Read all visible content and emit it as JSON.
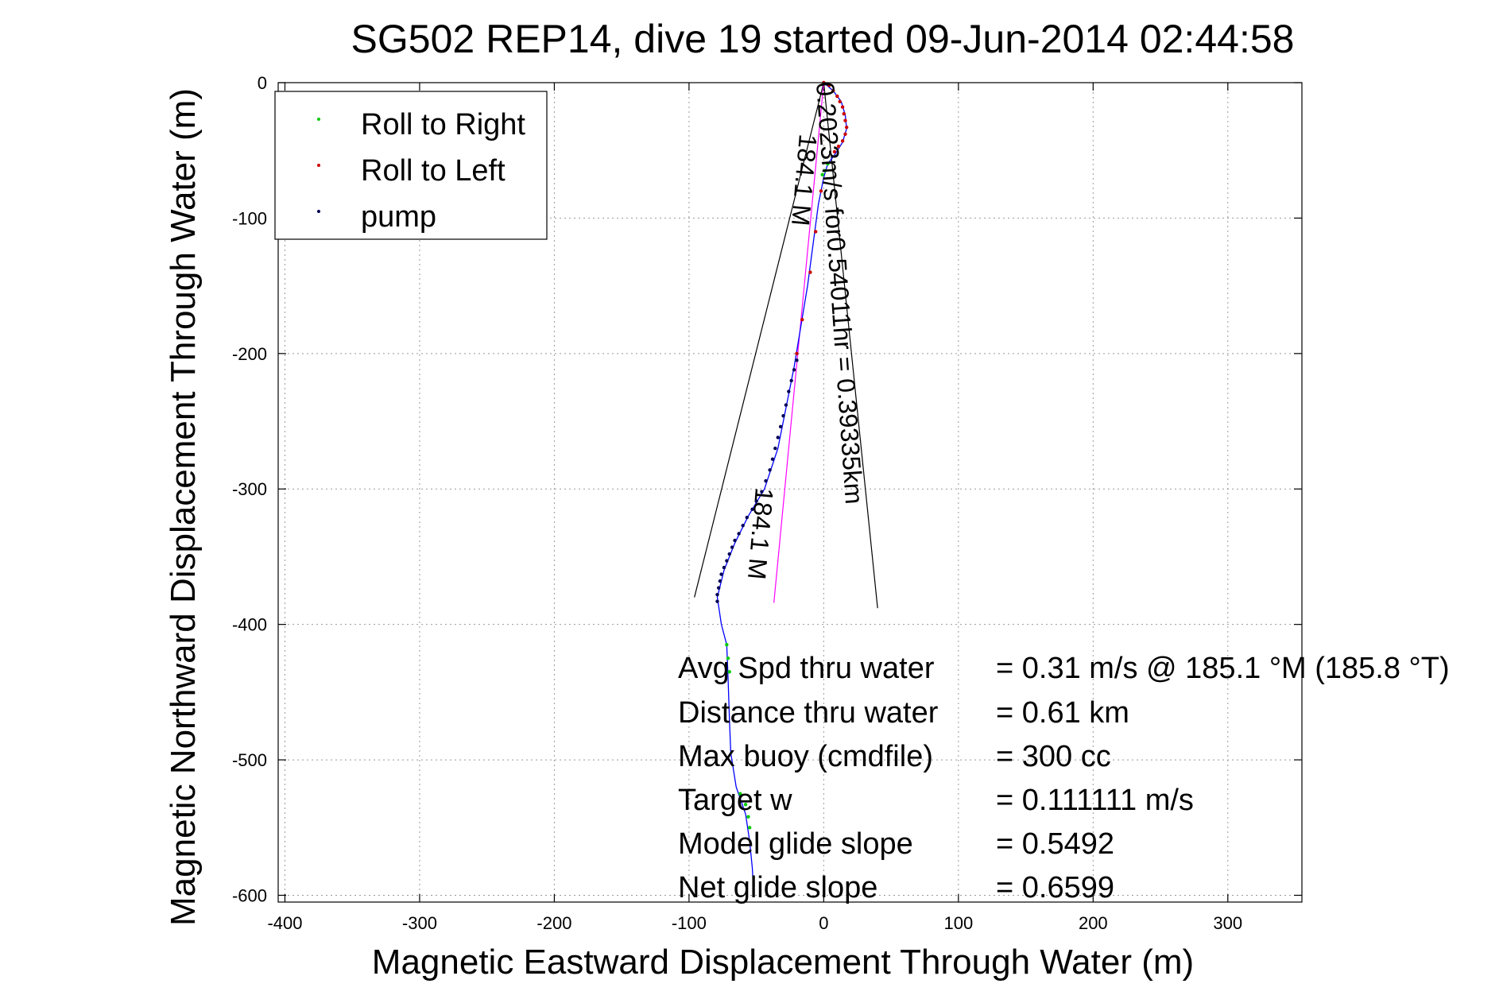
{
  "chart_data": {
    "type": "scatter",
    "title": "SG502 REP14, dive 19 started 09-Jun-2014 02:44:58",
    "xlabel": "Magnetic Eastward Displacement Through Water (m)",
    "ylabel": "Magnetic Northward Displacement Through Water (m)",
    "xlim": [
      -405,
      355
    ],
    "ylim": [
      -605,
      0
    ],
    "xticks": [
      -400,
      -300,
      -200,
      -100,
      0,
      100,
      200,
      300
    ],
    "xtick_labels": [
      "-400",
      "-300",
      "-200",
      "-100",
      "0",
      "100",
      "200",
      "300"
    ],
    "yticks": [
      0,
      -100,
      -200,
      -300,
      -400,
      -500,
      -600
    ],
    "ytick_labels": [
      "0",
      "-100",
      "-200",
      "-300",
      "-400",
      "-500",
      "-600"
    ],
    "grid": true,
    "legend": {
      "placement": "top-left",
      "entries": [
        {
          "label": "Roll to Right",
          "color": "#00cc00"
        },
        {
          "label": "Roll to Left",
          "color": "#cc0000"
        },
        {
          "label": "pump",
          "color": "#000055"
        }
      ]
    },
    "track": {
      "color": "#0000ff",
      "points": [
        [
          0,
          0
        ],
        [
          7,
          -6
        ],
        [
          13,
          -14
        ],
        [
          16,
          -24
        ],
        [
          17,
          -34
        ],
        [
          14,
          -44
        ],
        [
          9,
          -52
        ],
        [
          3,
          -60
        ],
        [
          0,
          -70
        ],
        [
          -4,
          -90
        ],
        [
          -8,
          -120
        ],
        [
          -12,
          -150
        ],
        [
          -17,
          -180
        ],
        [
          -22,
          -210
        ],
        [
          -28,
          -240
        ],
        [
          -34,
          -270
        ],
        [
          -44,
          -300
        ],
        [
          -56,
          -320
        ],
        [
          -66,
          -340
        ],
        [
          -74,
          -360
        ],
        [
          -79,
          -380
        ],
        [
          -76,
          -400
        ],
        [
          -72,
          -415
        ],
        [
          -71,
          -440
        ],
        [
          -70,
          -470
        ],
        [
          -69,
          -495
        ],
        [
          -65,
          -520
        ],
        [
          -58,
          -540
        ],
        [
          -55,
          -560
        ],
        [
          -53,
          -580
        ],
        [
          -52,
          -600
        ]
      ]
    },
    "roll_left_points": [
      [
        0,
        0
      ],
      [
        4,
        -2
      ],
      [
        7,
        -6
      ],
      [
        10,
        -10
      ],
      [
        12,
        -14
      ],
      [
        14,
        -18
      ],
      [
        15,
        -23
      ],
      [
        16,
        -28
      ],
      [
        17,
        -33
      ],
      [
        16,
        -38
      ],
      [
        14,
        -43
      ],
      [
        11,
        -47
      ],
      [
        8,
        -51
      ],
      [
        -2,
        -80
      ],
      [
        -6,
        -110
      ],
      [
        -10,
        -140
      ],
      [
        -16,
        -175
      ],
      [
        -20,
        -200
      ]
    ],
    "roll_right_points": [
      [
        3,
        -60
      ],
      [
        1,
        -65
      ],
      [
        -1,
        -68
      ],
      [
        -72,
        -415
      ],
      [
        -71,
        -425
      ],
      [
        -70,
        -435
      ],
      [
        -62,
        -525
      ],
      [
        -58,
        -533
      ],
      [
        -56,
        -542
      ],
      [
        -55,
        -550
      ]
    ],
    "pump_points": [
      [
        -20,
        -205
      ],
      [
        -22,
        -212
      ],
      [
        -24,
        -220
      ],
      [
        -26,
        -228
      ],
      [
        -28,
        -238
      ],
      [
        -30,
        -246
      ],
      [
        -32,
        -254
      ],
      [
        -34,
        -262
      ],
      [
        -36,
        -270
      ],
      [
        -38,
        -278
      ],
      [
        -40,
        -286
      ],
      [
        -43,
        -294
      ],
      [
        -46,
        -302
      ],
      [
        -50,
        -309
      ],
      [
        -53,
        -315
      ],
      [
        -57,
        -321
      ],
      [
        -60,
        -327
      ],
      [
        -63,
        -333
      ],
      [
        -66,
        -338
      ],
      [
        -68,
        -343
      ],
      [
        -70,
        -348
      ],
      [
        -72,
        -353
      ],
      [
        -74,
        -358
      ],
      [
        -76,
        -363
      ],
      [
        -77,
        -368
      ],
      [
        -78,
        -373
      ],
      [
        -79,
        -378
      ],
      [
        -79,
        -383
      ]
    ],
    "cone_lines": [
      {
        "points": [
          [
            0,
            0
          ],
          [
            -96,
            -380
          ]
        ]
      },
      {
        "points": [
          [
            0,
            0
          ],
          [
            40,
            -388
          ]
        ]
      }
    ],
    "heading_line": {
      "color": "#ff00ff",
      "points": [
        [
          0,
          0
        ],
        [
          -37,
          -384
        ]
      ]
    },
    "annotations": {
      "current": "0.2023m/s for0.54011hr = 0.39335km",
      "heading_upper": "184.1 M",
      "heading_lower": "184.1 M"
    },
    "stats": [
      {
        "label": "Avg Spd thru water",
        "value": "=  0.31 m/s @ 185.1 °M (185.8 °T)"
      },
      {
        "label": "Distance thru water",
        "value": "=  0.61 km"
      },
      {
        "label": "Max buoy (cmdfile)",
        "value": "= 300 cc"
      },
      {
        "label": "Target w",
        "value": "= 0.111111 m/s"
      },
      {
        "label": "Model glide slope",
        "value": "= 0.5492"
      },
      {
        "label": "Net glide slope",
        "value": "= 0.6599"
      }
    ]
  }
}
